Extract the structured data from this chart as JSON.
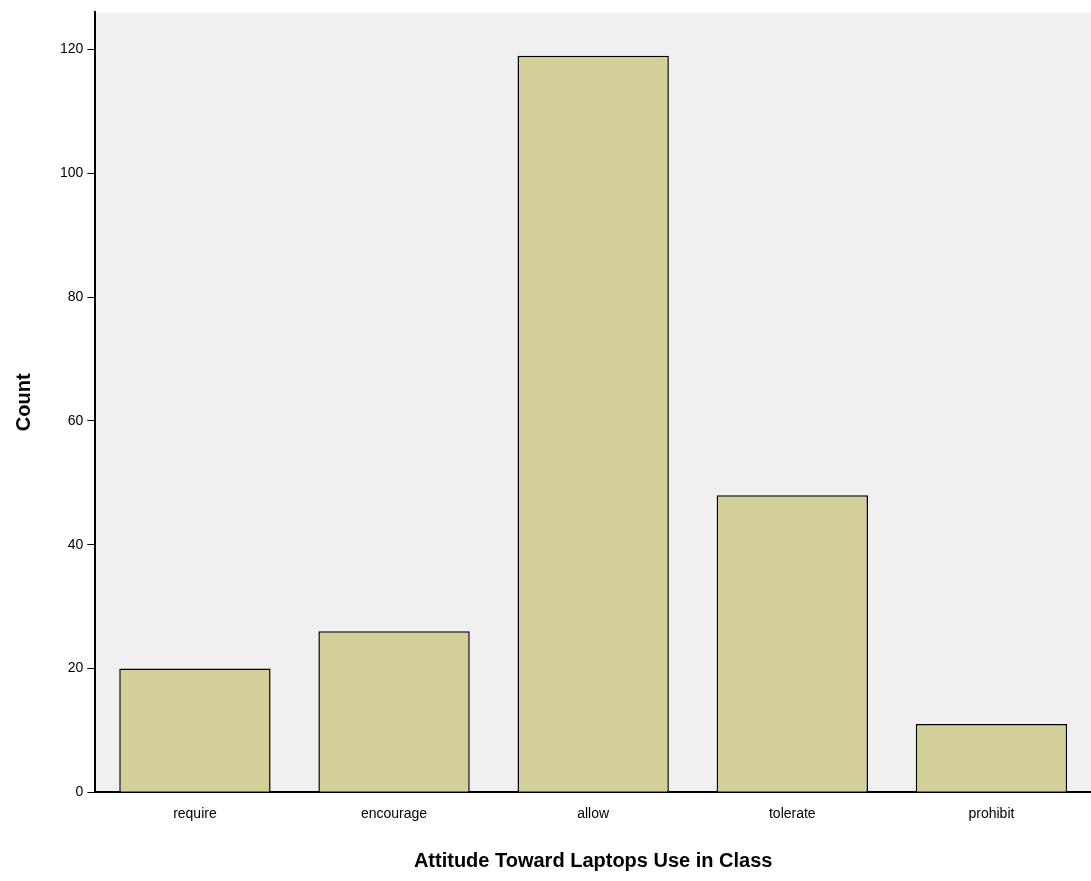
{
  "chart_data": {
    "type": "bar",
    "xlabel": "Attitude Toward Laptops Use in Class",
    "ylabel": "Count",
    "categories": [
      "require",
      "encourage",
      "allow",
      "tolerate",
      "prohibit"
    ],
    "values": [
      20,
      26,
      119,
      48,
      11
    ],
    "color": "#d3cf98",
    "ylim": [
      0,
      126
    ],
    "yticks": [
      0,
      20,
      40,
      60,
      80,
      100,
      120
    ],
    "grid": false,
    "legend": false
  }
}
